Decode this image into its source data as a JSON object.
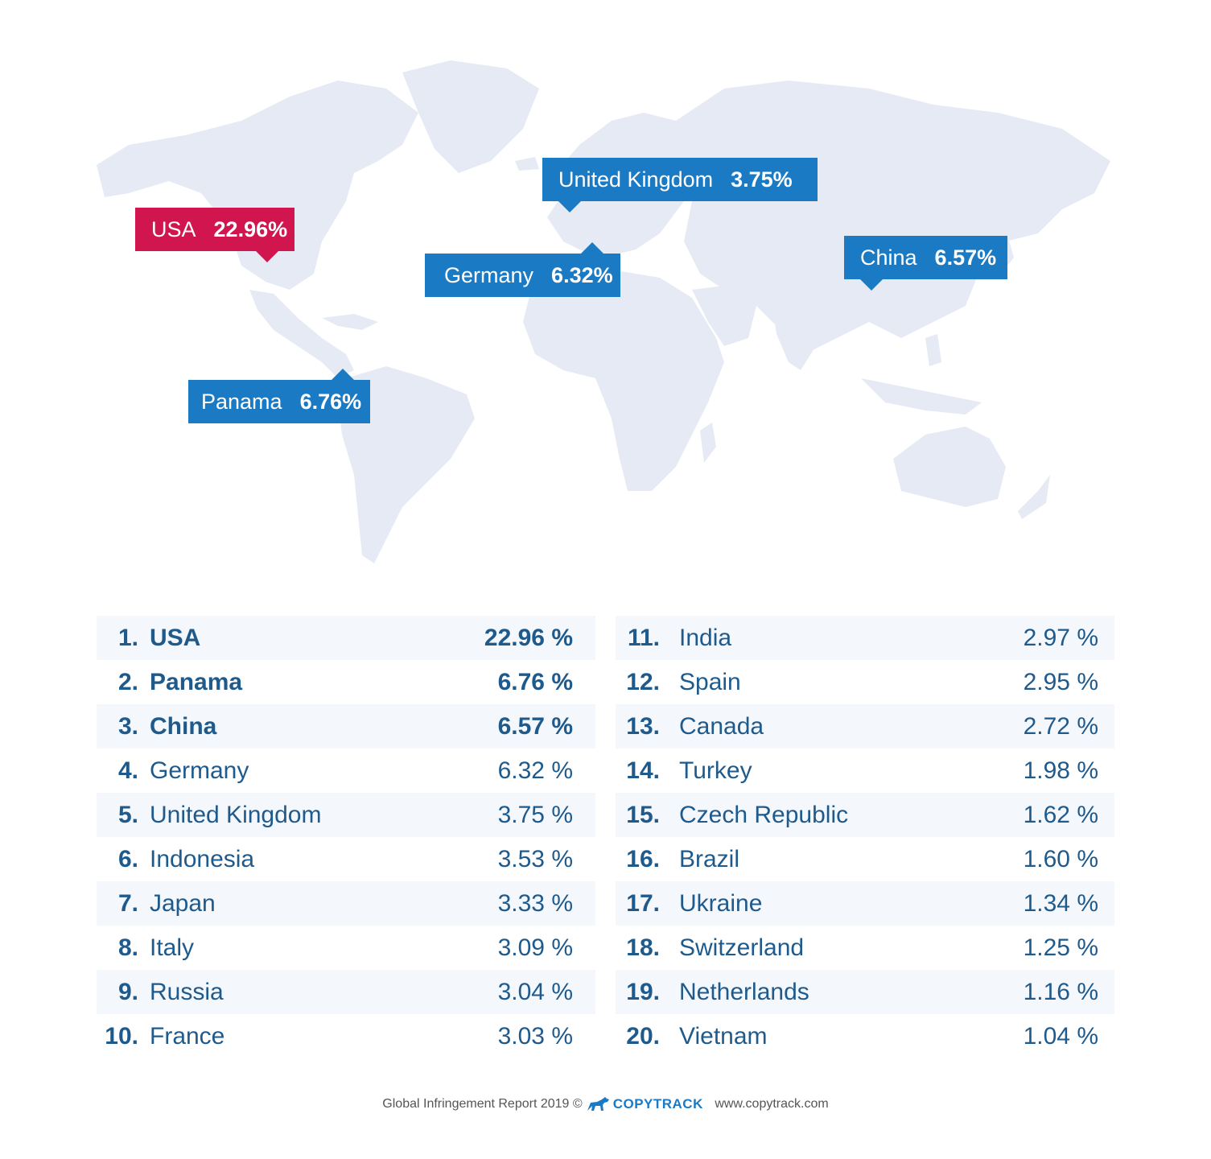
{
  "map": {
    "colors": {
      "land": "#e5eaf4",
      "callout_blue": "#1b7ac4",
      "callout_red": "#d1164f"
    },
    "callouts": [
      {
        "id": "usa",
        "name": "USA",
        "value": "22.96%",
        "color": "red"
      },
      {
        "id": "uk",
        "name": "United Kingdom",
        "value": "3.75%",
        "color": "blue"
      },
      {
        "id": "germany",
        "name": "Germany",
        "value": "6.32%",
        "color": "blue"
      },
      {
        "id": "china",
        "name": "China",
        "value": "6.57%",
        "color": "blue"
      },
      {
        "id": "panama",
        "name": "Panama",
        "value": "6.76%",
        "color": "blue"
      }
    ]
  },
  "ranking": {
    "left": [
      {
        "rank": "1.",
        "country": "USA",
        "value": "22.96 %"
      },
      {
        "rank": "2.",
        "country": "Panama",
        "value": "6.76 %"
      },
      {
        "rank": "3.",
        "country": "China",
        "value": "6.57 %"
      },
      {
        "rank": "4.",
        "country": "Germany",
        "value": "6.32 %"
      },
      {
        "rank": "5.",
        "country": "United Kingdom",
        "value": "3.75 %"
      },
      {
        "rank": "6.",
        "country": "Indonesia",
        "value": "3.53 %"
      },
      {
        "rank": "7.",
        "country": "Japan",
        "value": "3.33 %"
      },
      {
        "rank": "8.",
        "country": "Italy",
        "value": "3.09 %"
      },
      {
        "rank": "9.",
        "country": "Russia",
        "value": "3.04 %"
      },
      {
        "rank": "10.",
        "country": "France",
        "value": "3.03 %"
      }
    ],
    "right": [
      {
        "rank": "11.",
        "country": "India",
        "value": "2.97 %"
      },
      {
        "rank": "12.",
        "country": "Spain",
        "value": "2.95 %"
      },
      {
        "rank": "13.",
        "country": "Canada",
        "value": "2.72 %"
      },
      {
        "rank": "14.",
        "country": "Turkey",
        "value": "1.98 %"
      },
      {
        "rank": "15.",
        "country": "Czech Republic",
        "value": "1.62 %"
      },
      {
        "rank": "16.",
        "country": "Brazil",
        "value": "1.60 %"
      },
      {
        "rank": "17.",
        "country": "Ukraine",
        "value": "1.34 %"
      },
      {
        "rank": "18.",
        "country": "Switzerland",
        "value": "1.25 %"
      },
      {
        "rank": "19.",
        "country": "Netherlands",
        "value": "1.16 %"
      },
      {
        "rank": "20.",
        "country": "Vietnam",
        "value": "1.04 %"
      }
    ]
  },
  "footer": {
    "report": "Global Infringement Report 2019",
    "copyright": "©",
    "brand": "COPYTRACK",
    "url": "www.copytrack.com",
    "brand_color": "#1b7ac4"
  }
}
